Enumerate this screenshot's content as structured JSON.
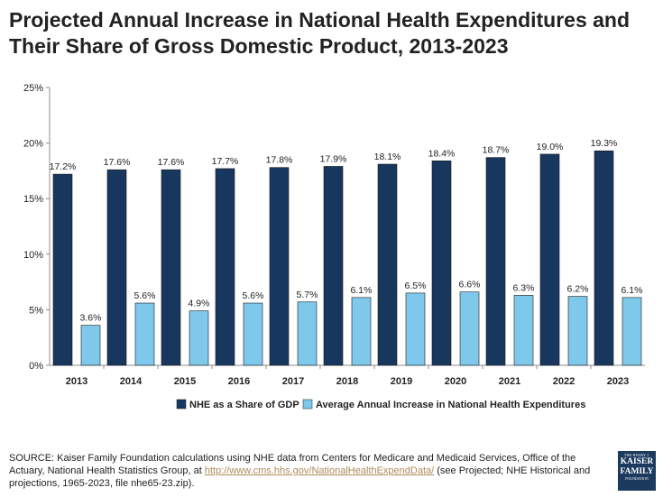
{
  "title": "Projected Annual Increase in National Health Expenditures and Their Share of Gross Domestic Product, 2013-2023",
  "chart_data": {
    "type": "bar",
    "categories": [
      "2013",
      "2014",
      "2015",
      "2016",
      "2017",
      "2018",
      "2019",
      "2020",
      "2021",
      "2022",
      "2023"
    ],
    "series": [
      {
        "name": "NHE as a Share of GDP",
        "values": [
          17.2,
          17.6,
          17.6,
          17.7,
          17.8,
          17.9,
          18.1,
          18.4,
          18.7,
          19.0,
          19.3
        ],
        "labels": [
          "17.2%",
          "17.6%",
          "17.6%",
          "17.7%",
          "17.8%",
          "17.9%",
          "18.1%",
          "18.4%",
          "18.7%",
          "19.0%",
          "19.3%"
        ],
        "color": "#17375e"
      },
      {
        "name": "Average Annual Increase in National Health Expenditures",
        "values": [
          3.6,
          5.6,
          4.9,
          5.6,
          5.7,
          6.1,
          6.5,
          6.6,
          6.3,
          6.2,
          6.1
        ],
        "labels": [
          "3.6%",
          "5.6%",
          "4.9%",
          "5.6%",
          "5.7%",
          "6.1%",
          "6.5%",
          "6.6%",
          "6.3%",
          "6.2%",
          "6.1%"
        ],
        "color": "#7ec8ec"
      }
    ],
    "ylim": [
      0,
      25
    ],
    "yticks": [
      0,
      5,
      10,
      15,
      20,
      25
    ],
    "ytick_labels": [
      "0%",
      "5%",
      "10%",
      "15%",
      "20%",
      "25%"
    ],
    "xlabel": "",
    "ylabel": "",
    "grid": false,
    "legend_position": "bottom-center"
  },
  "source": {
    "prefix": "SOURCE: Kaiser Family Foundation calculations using NHE data from Centers for Medicare and Medicaid Services, Office of the Actuary, National Health Statistics Group, at ",
    "link": "http://www.cms.hhs.gov/NationalHealthExpendData/",
    "suffix": " (see Projected; NHE Historical and projections, 1965-2023, file nhe65-23.zip)."
  },
  "logo": {
    "line1": "THE HENRY J.",
    "line2": "KAISER",
    "line3": "FAMILY",
    "line4": "FOUNDATION"
  },
  "colors": {
    "series_dark": "#17375e",
    "series_light": "#7ec8ec",
    "link": "#b08a5a",
    "logo_bg": "#1c3a5e"
  }
}
